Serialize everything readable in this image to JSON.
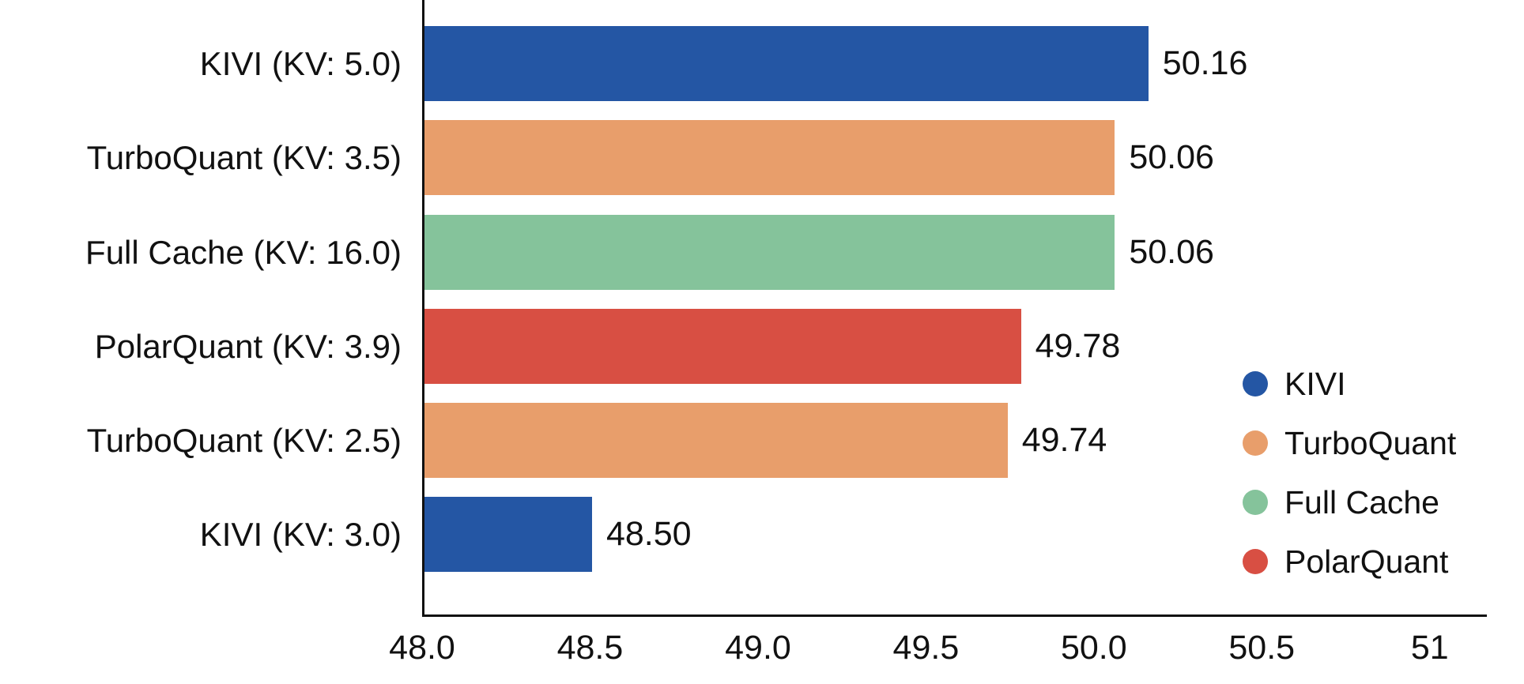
{
  "chart_data": {
    "type": "bar",
    "orientation": "horizontal",
    "title": "",
    "xlabel": "",
    "ylabel": "",
    "grid": false,
    "legend_position": "right",
    "categories": [
      "KIVI (KV: 5.0)",
      "TurboQuant (KV: 3.5)",
      "Full Cache (KV: 16.0)",
      "PolarQuant (KV: 3.9)",
      "TurboQuant (KV: 2.5)",
      "KIVI (KV: 3.0)"
    ],
    "values": [
      50.16,
      50.06,
      50.06,
      49.78,
      49.74,
      48.5
    ],
    "value_labels": [
      "50.16",
      "50.06",
      "50.06",
      "49.78",
      "49.74",
      "48.50"
    ],
    "bar_series": [
      "KIVI",
      "TurboQuant",
      "Full Cache",
      "PolarQuant",
      "TurboQuant",
      "KIVI"
    ],
    "bar_colors": [
      "#2456A4",
      "#E89E6B",
      "#85C39B",
      "#D84F43",
      "#E89E6B",
      "#2456A4"
    ],
    "x_ticks": [
      "48.0",
      "48.5",
      "49.0",
      "49.5",
      "50.0",
      "50.5",
      "51"
    ],
    "xlim": [
      48.0,
      51.17
    ],
    "legend": [
      {
        "label": "KIVI",
        "color": "#2456A4"
      },
      {
        "label": "TurboQuant",
        "color": "#E89E6B"
      },
      {
        "label": "Full Cache",
        "color": "#85C39B"
      },
      {
        "label": "PolarQuant",
        "color": "#D84F43"
      }
    ],
    "colors": {
      "text": "#111111",
      "axis": "#111111",
      "background": "#ffffff"
    }
  }
}
